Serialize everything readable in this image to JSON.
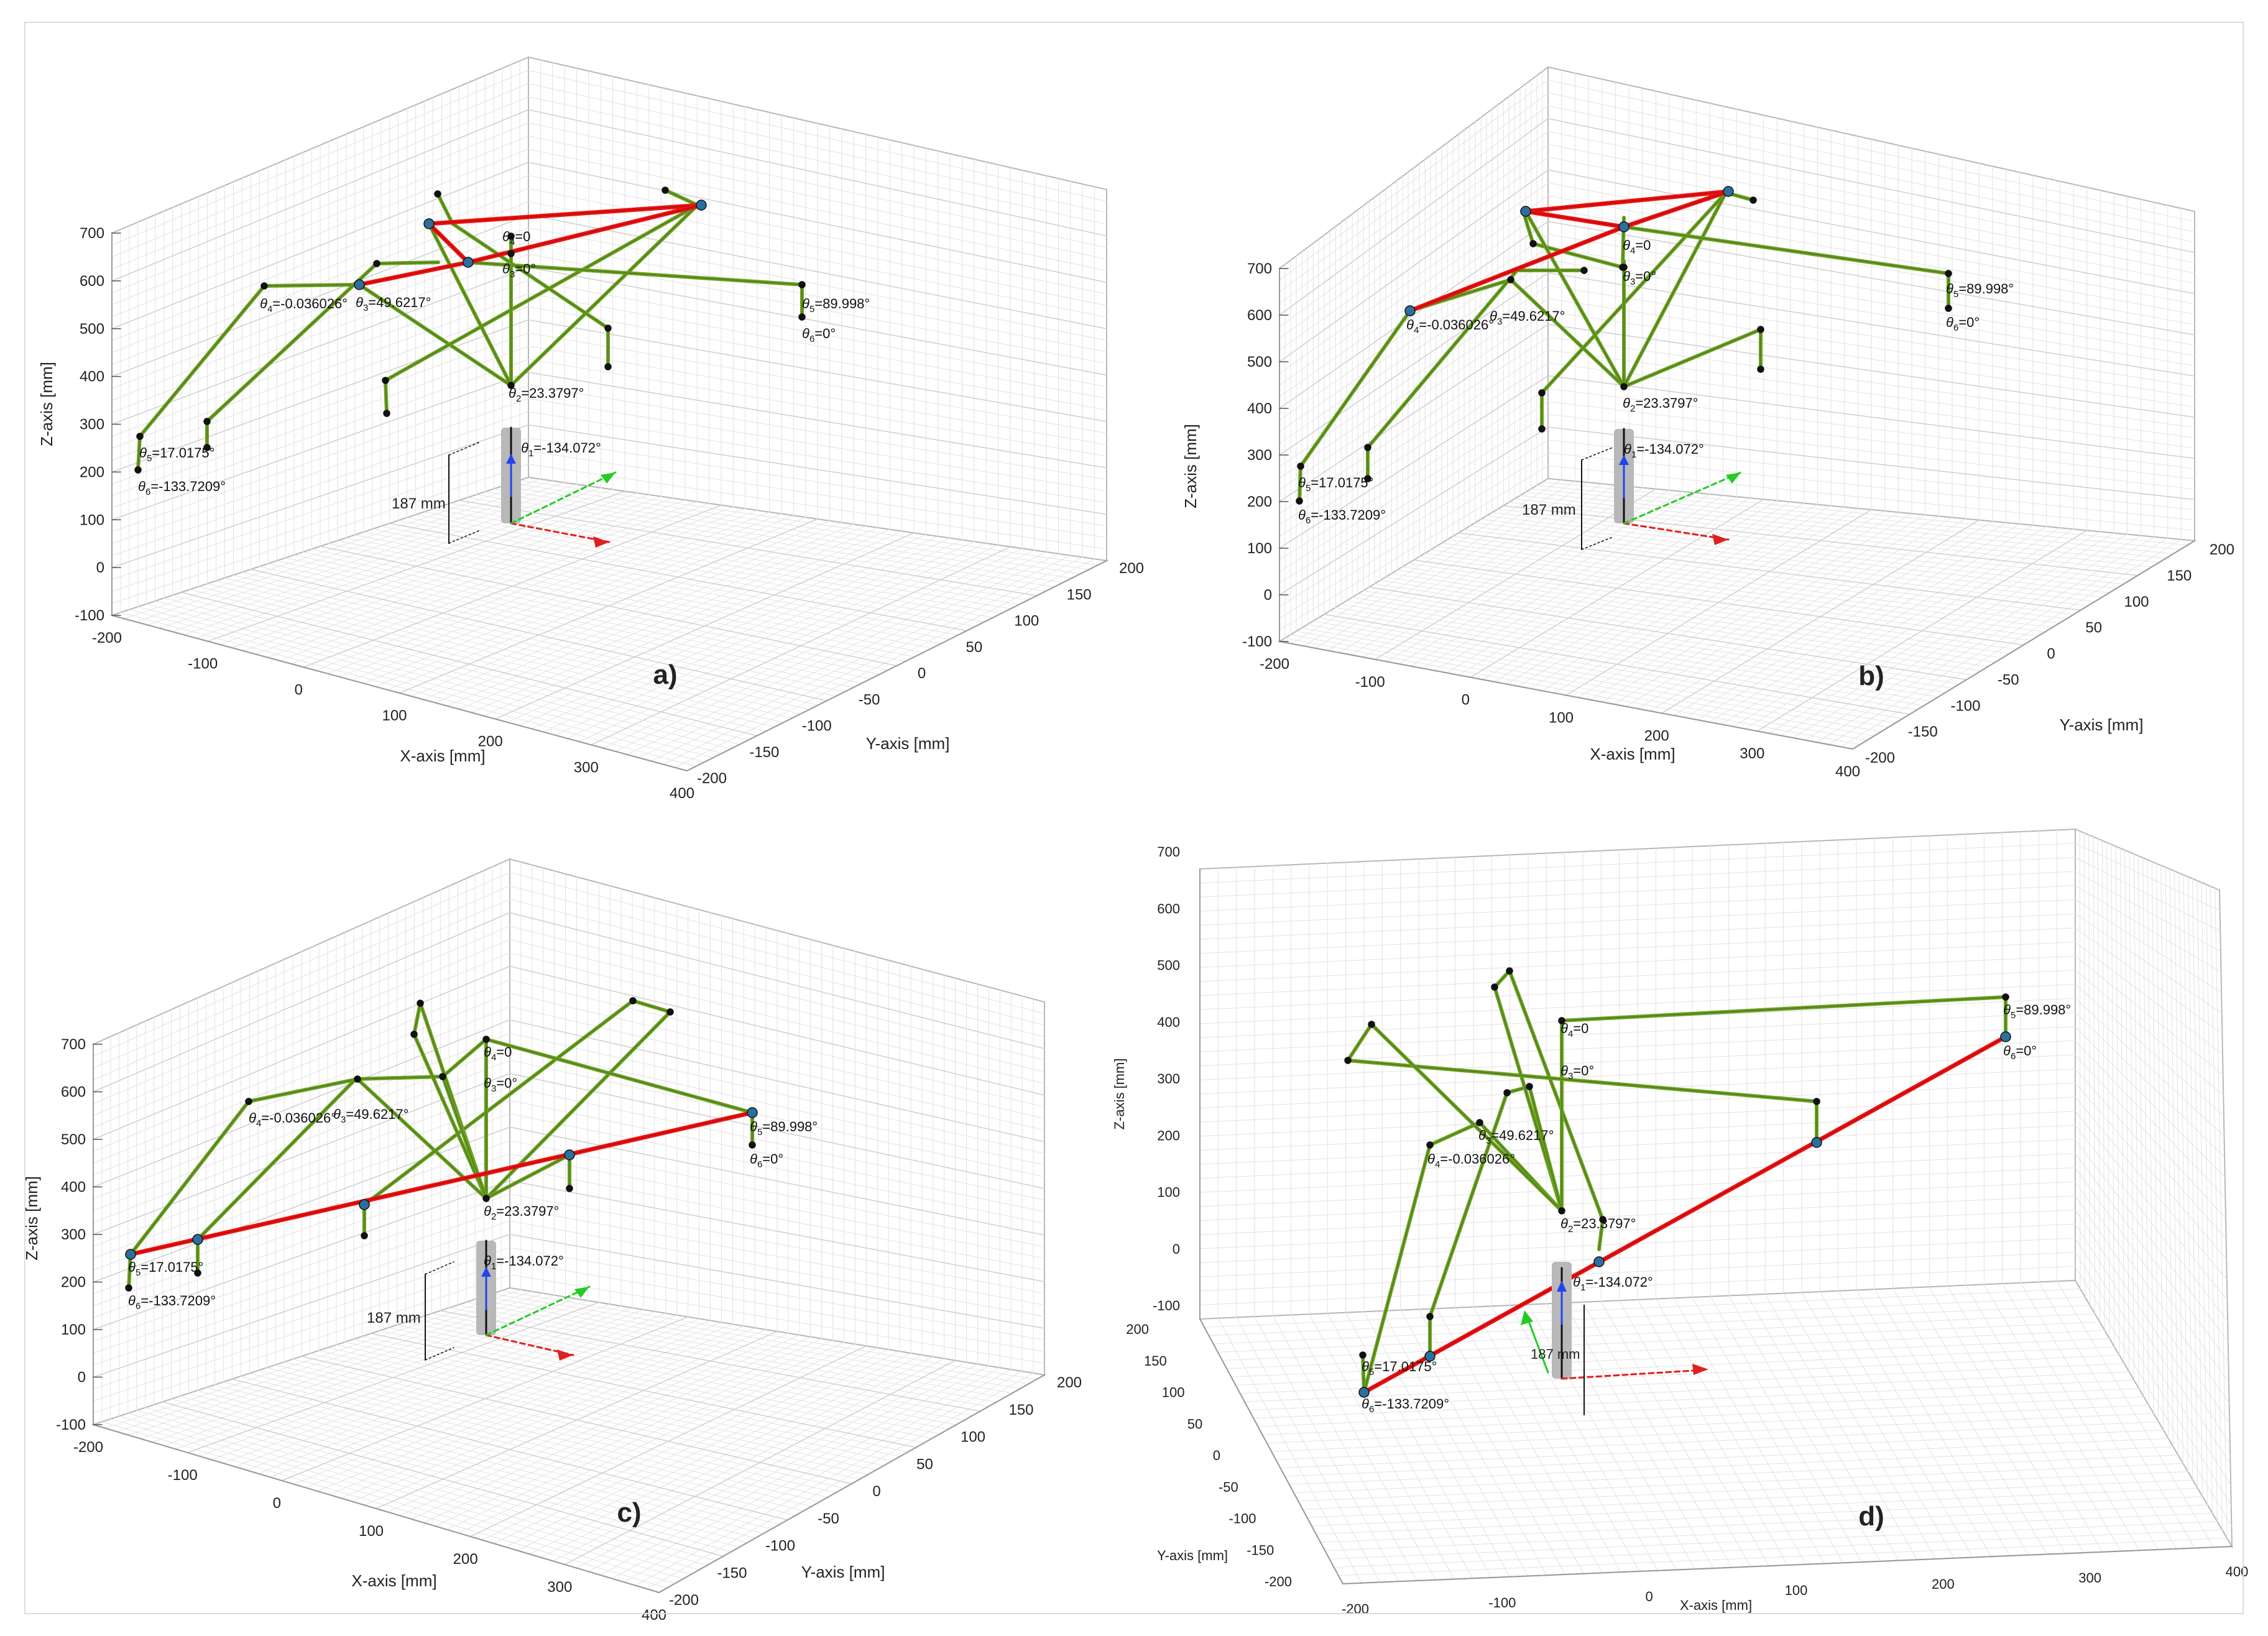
{
  "chart_data": {
    "type": "3d-line",
    "figure": "Four 3D views (a-d) of a hexapod robot leg/body configuration plotted in MATLAB-style axes",
    "axis_labels": {
      "x": "X-axis [mm]",
      "y": "Y-axis [mm]",
      "z": "Z-axis [mm]"
    },
    "axis_ranges": {
      "x": [
        -200,
        400
      ],
      "y": [
        -200,
        200
      ],
      "z": [
        -100,
        700
      ]
    },
    "x_ticks": [
      "-200",
      "-100",
      "0",
      "100",
      "200",
      "300",
      "400"
    ],
    "y_ticks": [
      "-200",
      "-150",
      "-100",
      "-50",
      "0",
      "50",
      "100",
      "150",
      "200"
    ],
    "z_ticks": [
      "-100",
      "0",
      "100",
      "200",
      "300",
      "400",
      "500",
      "600",
      "700"
    ],
    "angle_labels": {
      "theta1": "-134.072°",
      "theta2": "23.3797°",
      "theta3": "49.6217°",
      "theta4": "-0.036026°",
      "theta5": "17.0175°",
      "theta6": "-133.7209°",
      "theta3b": "0°",
      "theta4b": "0",
      "theta5b": "89.998°",
      "theta6b": "0°"
    },
    "height_label": "187 mm",
    "series": [
      {
        "name": "legs",
        "color": "#6aa121"
      },
      {
        "name": "highlighted chain",
        "color": "#ee1111"
      },
      {
        "name": "x-axis arrow",
        "color": "#e0201f"
      },
      {
        "name": "y-axis arrow",
        "color": "#22cc22"
      },
      {
        "name": "z-axis arrow",
        "color": "#2244ee"
      }
    ],
    "panels": [
      {
        "id": "a",
        "label": "a)",
        "highlight": "upper body triangle"
      },
      {
        "id": "b",
        "label": "b)",
        "highlight": "upper body triangle"
      },
      {
        "id": "c",
        "label": "c)",
        "highlight": "line between foot tips"
      },
      {
        "id": "d",
        "label": "d)",
        "highlight": "line between foot tips"
      }
    ]
  }
}
